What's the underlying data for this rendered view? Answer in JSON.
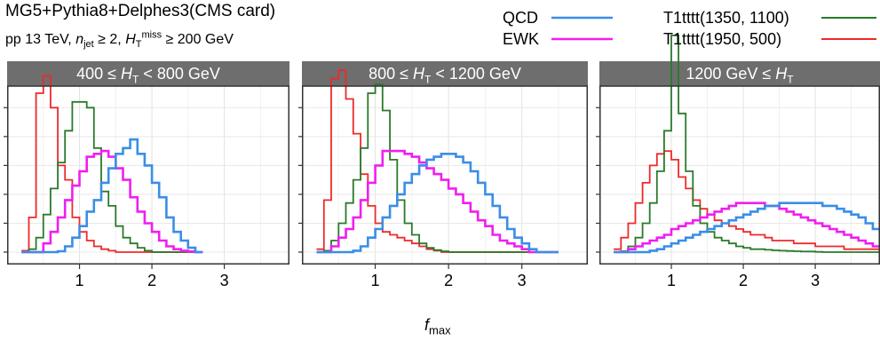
{
  "header": {
    "title": "MG5+Pythia8+Delphes3(CMS card)",
    "subtitle_prefix": "pp 13 TeV, ",
    "subtitle_njet_var": "n",
    "subtitle_njet_sub": "jet",
    "subtitle_njet_cond": " ≥ 2, ",
    "subtitle_ht_var": "H",
    "subtitle_ht_sub": "T",
    "subtitle_ht_sup": "miss",
    "subtitle_ht_cond": " ≥ 200 GeV"
  },
  "legend": [
    {
      "label": "QCD",
      "color": "#3a8ee6"
    },
    {
      "label": "EWK",
      "color": "#f01ef0"
    },
    {
      "label": "T1tttt(1350, 1100)",
      "color": "#2a7a2a"
    },
    {
      "label": "T1tttt(1950, 500)",
      "color": "#ee2a2a"
    }
  ],
  "x_axis": {
    "var": "f",
    "sub": "max",
    "ticks": [
      "1",
      "2",
      "3"
    ]
  },
  "panels": [
    {
      "label_pre": "400 ≤ ",
      "label_var": "H",
      "label_sub": "T",
      "label_post": " < 800 GeV"
    },
    {
      "label_pre": "800 ≤ ",
      "label_var": "H",
      "label_sub": "T",
      "label_post": " < 1200 GeV"
    },
    {
      "label_pre": "1200 GeV ≤ ",
      "label_var": "H",
      "label_sub": "T",
      "label_post": ""
    }
  ],
  "chart_data": {
    "type": "line",
    "style": "step histogram (normalized, faceted by H_T bin)",
    "xlabel": "f_max",
    "ylabel": "",
    "xlim": [
      0,
      3.9
    ],
    "ylim": [
      0,
      0.055
    ],
    "bin_start": 0.2,
    "bin_width": 0.1,
    "grid": true,
    "legend_position": "top",
    "facets": [
      {
        "label": "400 ≤ H_T < 800 GeV",
        "series": [
          {
            "name": "QCD",
            "values": [
              0,
              0,
              0,
              0,
              0,
              0.0003,
              0.002,
              0.005,
              0.009,
              0.014,
              0.018,
              0.024,
              0.029,
              0.034,
              0.036,
              0.039,
              0.034,
              0.03,
              0.024,
              0.019,
              0.012,
              0.007,
              0.004,
              0.0015,
              0
            ]
          },
          {
            "name": "EWK",
            "values": [
              0,
              0,
              0,
              0.003,
              0.007,
              0.012,
              0.018,
              0.023,
              0.028,
              0.033,
              0.034,
              0.035,
              0.033,
              0.029,
              0.025,
              0.019,
              0.014,
              0.01,
              0.007,
              0.004,
              0.002,
              0.001,
              0.0005,
              0.0002,
              0
            ]
          },
          {
            "name": "T1tttt(1350, 1100)",
            "values": [
              0,
              0.001,
              0.005,
              0.013,
              0.022,
              0.031,
              0.042,
              0.052,
              0.052,
              0.05,
              0.036,
              0.021,
              0.016,
              0.009,
              0.005,
              0.003,
              0.0015,
              0.0005,
              0,
              0,
              0,
              0,
              0,
              0,
              0
            ]
          },
          {
            "name": "T1tttt(1950, 500)",
            "values": [
              0.0005,
              0.012,
              0.055,
              0.061,
              0.05,
              0.03,
              0.025,
              0.012,
              0.007,
              0.004,
              0.002,
              0.001,
              0.0005,
              0,
              0,
              0,
              0,
              0,
              0,
              0,
              0,
              0,
              0,
              0,
              0
            ]
          }
        ]
      },
      {
        "label": "800 ≤ H_T < 1200 GeV",
        "series": [
          {
            "name": "QCD",
            "values": [
              0,
              0,
              0,
              0,
              0,
              0.0005,
              0.002,
              0.005,
              0.008,
              0.012,
              0.016,
              0.02,
              0.024,
              0.027,
              0.03,
              0.032,
              0.033,
              0.034,
              0.034,
              0.033,
              0.031,
              0.028,
              0.024,
              0.02,
              0.016,
              0.012,
              0.008,
              0.005,
              0.003,
              0.001,
              0,
              0,
              0
            ]
          },
          {
            "name": "EWK",
            "values": [
              0,
              0,
              0.002,
              0.005,
              0.008,
              0.012,
              0.018,
              0.024,
              0.03,
              0.035,
              0.035,
              0.035,
              0.034,
              0.033,
              0.031,
              0.029,
              0.027,
              0.025,
              0.022,
              0.02,
              0.017,
              0.014,
              0.011,
              0.009,
              0.006,
              0.004,
              0.003,
              0.002,
              0.001,
              0,
              0,
              0,
              0
            ]
          },
          {
            "name": "T1tttt(1350, 1100)",
            "values": [
              0,
              0.0005,
              0.004,
              0.01,
              0.017,
              0.025,
              0.036,
              0.055,
              0.058,
              0.049,
              0.032,
              0.018,
              0.01,
              0.006,
              0.003,
              0.0015,
              0.0007,
              0.0003,
              0,
              0,
              0,
              0,
              0,
              0,
              0,
              0,
              0,
              0,
              0,
              0,
              0,
              0,
              0
            ]
          },
          {
            "name": "T1tttt(1950, 500)",
            "values": [
              0.001,
              0.018,
              0.06,
              0.063,
              0.053,
              0.041,
              0.027,
              0.016,
              0.01,
              0.007,
              0.006,
              0.005,
              0.004,
              0.003,
              0.002,
              0.001,
              0.0005,
              0,
              0,
              0,
              0,
              0,
              0,
              0,
              0,
              0,
              0,
              0,
              0,
              0,
              0,
              0,
              0
            ]
          }
        ]
      },
      {
        "label": "1200 GeV ≤ H_T",
        "series": [
          {
            "name": "QCD",
            "values": [
              0,
              0,
              0,
              0,
              0,
              0.0005,
              0.001,
              0.002,
              0.003,
              0.004,
              0.005,
              0.006,
              0.007,
              0.008,
              0.009,
              0.01,
              0.011,
              0.012,
              0.013,
              0.014,
              0.015,
              0.016,
              0.016,
              0.017,
              0.017,
              0.017,
              0.017,
              0.017,
              0.017,
              0.016,
              0.016,
              0.015,
              0.014,
              0.013,
              0.012,
              0.01,
              0.008
            ]
          },
          {
            "name": "EWK",
            "values": [
              0,
              0,
              0.001,
              0.002,
              0.003,
              0.004,
              0.005,
              0.006,
              0.008,
              0.009,
              0.01,
              0.011,
              0.012,
              0.013,
              0.014,
              0.015,
              0.016,
              0.017,
              0.017,
              0.017,
              0.017,
              0.016,
              0.016,
              0.015,
              0.014,
              0.013,
              0.012,
              0.011,
              0.01,
              0.009,
              0.008,
              0.007,
              0.006,
              0.005,
              0.004,
              0.003,
              0.002
            ]
          },
          {
            "name": "T1tttt(1350, 1100)",
            "values": [
              0,
              0.0003,
              0.002,
              0.005,
              0.01,
              0.017,
              0.028,
              0.042,
              0.075,
              0.048,
              0.028,
              0.016,
              0.01,
              0.007,
              0.005,
              0.004,
              0.003,
              0.002,
              0.0015,
              0.001,
              0.001,
              0.0008,
              0.0006,
              0.0005,
              0.0004,
              0.0003,
              0.0002,
              0.0002,
              0.0001,
              0,
              0,
              0,
              0,
              0,
              0,
              0,
              0
            ]
          },
          {
            "name": "T1tttt(1950, 500)",
            "values": [
              0.001,
              0.005,
              0.01,
              0.017,
              0.024,
              0.03,
              0.034,
              0.035,
              0.032,
              0.026,
              0.022,
              0.018,
              0.015,
              0.013,
              0.011,
              0.01,
              0.009,
              0.008,
              0.007,
              0.006,
              0.006,
              0.005,
              0.004,
              0.004,
              0.004,
              0.003,
              0.003,
              0.003,
              0.002,
              0.002,
              0.002,
              0.002,
              0.001,
              0.001,
              0.001,
              0.001,
              0.001
            ]
          }
        ]
      }
    ]
  }
}
